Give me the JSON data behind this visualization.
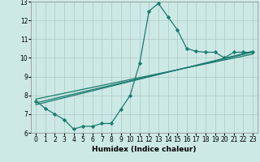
{
  "title": "",
  "xlabel": "Humidex (Indice chaleur)",
  "ylabel": "",
  "bg_color": "#cce9e5",
  "grid_color": "#b0c8c5",
  "line_color": "#1a7a6e",
  "xlim": [
    -0.5,
    23.5
  ],
  "ylim": [
    6,
    13
  ],
  "xticks": [
    0,
    1,
    2,
    3,
    4,
    5,
    6,
    7,
    8,
    9,
    10,
    11,
    12,
    13,
    14,
    15,
    16,
    17,
    18,
    19,
    20,
    21,
    22,
    23
  ],
  "yticks": [
    6,
    7,
    8,
    9,
    10,
    11,
    12,
    13
  ],
  "curve1_x": [
    0,
    1,
    2,
    3,
    4,
    5,
    6,
    7,
    8,
    9,
    10,
    11,
    12,
    13,
    14,
    15,
    16,
    17,
    18,
    19,
    20,
    21,
    22,
    23
  ],
  "curve1_y": [
    7.7,
    7.3,
    7.0,
    6.7,
    6.2,
    6.35,
    6.35,
    6.5,
    6.5,
    7.25,
    8.0,
    9.7,
    12.5,
    12.9,
    12.2,
    11.5,
    10.5,
    10.35,
    10.3,
    10.3,
    10.0,
    10.3,
    10.3,
    10.3
  ],
  "curve2_x": [
    0,
    23
  ],
  "curve2_y": [
    7.6,
    10.3
  ],
  "curve3_x": [
    0,
    23
  ],
  "curve3_y": [
    7.8,
    10.2
  ],
  "curve4_x": [
    0,
    23
  ],
  "curve4_y": [
    7.5,
    10.35
  ]
}
